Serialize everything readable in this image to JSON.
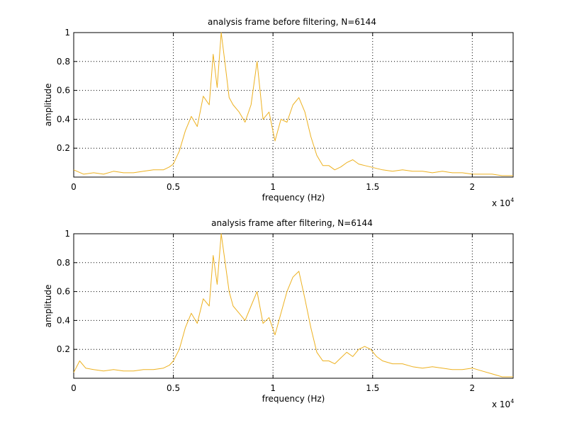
{
  "colors": {
    "series": "#EDB120",
    "axis": "#000000",
    "grid": "#000000",
    "background": "#ffffff"
  },
  "chart_data": [
    {
      "type": "line",
      "title": "analysis frame before filtering, N=6144",
      "xlabel": "frequency (Hz)",
      "ylabel": "amplitude",
      "xlim": [
        0,
        22050
      ],
      "ylim": [
        0,
        1
      ],
      "x_exponent": {
        "prefix": "x 10",
        "power": "4"
      },
      "xticks": [
        0,
        5000,
        10000,
        15000,
        20000
      ],
      "xtick_labels": [
        "0",
        "0.5",
        "1",
        "1.5",
        "2"
      ],
      "yticks": [
        0.2,
        0.4,
        0.6,
        0.8,
        1
      ],
      "ytick_labels": [
        "0.2",
        "0.4",
        "0.6",
        "0.8",
        "1"
      ],
      "grid": true,
      "series": [
        {
          "x": [
            0,
            500,
            1000,
            1500,
            2000,
            2500,
            3000,
            3500,
            4000,
            4500,
            4800,
            5000,
            5300,
            5600,
            5900,
            6200,
            6500,
            6800,
            7000,
            7200,
            7400,
            7600,
            7800,
            8000,
            8300,
            8600,
            8900,
            9200,
            9500,
            9800,
            10100,
            10400,
            10700,
            11000,
            11300,
            11600,
            11900,
            12200,
            12500,
            12800,
            13100,
            13400,
            13700,
            14000,
            14300,
            14600,
            14900,
            15200,
            15500,
            16000,
            16500,
            17000,
            17500,
            18000,
            18500,
            19000,
            19500,
            20000,
            20500,
            21000,
            21500,
            22050
          ],
          "y": [
            0.05,
            0.02,
            0.03,
            0.02,
            0.04,
            0.03,
            0.03,
            0.04,
            0.05,
            0.05,
            0.07,
            0.09,
            0.18,
            0.32,
            0.42,
            0.35,
            0.56,
            0.5,
            0.85,
            0.62,
            1.0,
            0.78,
            0.55,
            0.5,
            0.45,
            0.38,
            0.5,
            0.8,
            0.4,
            0.45,
            0.25,
            0.4,
            0.38,
            0.5,
            0.55,
            0.45,
            0.28,
            0.15,
            0.08,
            0.08,
            0.05,
            0.07,
            0.1,
            0.12,
            0.09,
            0.08,
            0.07,
            0.06,
            0.05,
            0.04,
            0.05,
            0.04,
            0.04,
            0.03,
            0.04,
            0.03,
            0.03,
            0.02,
            0.02,
            0.02,
            0.01,
            0.01
          ]
        }
      ]
    },
    {
      "type": "line",
      "title": "analysis frame after filtering, N=6144",
      "xlabel": "frequency (Hz)",
      "ylabel": "amplitude",
      "xlim": [
        0,
        22050
      ],
      "ylim": [
        0,
        1
      ],
      "x_exponent": {
        "prefix": "x 10",
        "power": "4"
      },
      "xticks": [
        0,
        5000,
        10000,
        15000,
        20000
      ],
      "xtick_labels": [
        "0",
        "0.5",
        "1",
        "1.5",
        "2"
      ],
      "yticks": [
        0.2,
        0.4,
        0.6,
        0.8,
        1
      ],
      "ytick_labels": [
        "0.2",
        "0.4",
        "0.6",
        "0.8",
        "1"
      ],
      "grid": true,
      "series": [
        {
          "x": [
            0,
            300,
            600,
            1000,
            1500,
            2000,
            2500,
            3000,
            3500,
            4000,
            4500,
            4800,
            5000,
            5300,
            5600,
            5900,
            6200,
            6500,
            6800,
            7000,
            7200,
            7400,
            7600,
            7800,
            8000,
            8300,
            8600,
            8900,
            9200,
            9500,
            9800,
            10100,
            10400,
            10700,
            11000,
            11300,
            11600,
            11900,
            12200,
            12500,
            12800,
            13100,
            13400,
            13700,
            14000,
            14300,
            14600,
            14900,
            15200,
            15500,
            16000,
            16500,
            17000,
            17500,
            18000,
            18500,
            19000,
            19500,
            20000,
            20500,
            21000,
            21500,
            22050
          ],
          "y": [
            0.04,
            0.12,
            0.07,
            0.06,
            0.05,
            0.06,
            0.05,
            0.05,
            0.06,
            0.06,
            0.07,
            0.09,
            0.12,
            0.2,
            0.35,
            0.45,
            0.38,
            0.55,
            0.5,
            0.85,
            0.65,
            1.0,
            0.8,
            0.6,
            0.5,
            0.45,
            0.4,
            0.5,
            0.6,
            0.38,
            0.42,
            0.3,
            0.45,
            0.6,
            0.7,
            0.74,
            0.55,
            0.35,
            0.18,
            0.12,
            0.12,
            0.1,
            0.14,
            0.18,
            0.15,
            0.2,
            0.22,
            0.2,
            0.15,
            0.12,
            0.1,
            0.1,
            0.08,
            0.07,
            0.08,
            0.07,
            0.06,
            0.06,
            0.07,
            0.05,
            0.03,
            0.01,
            0.01
          ]
        }
      ]
    }
  ]
}
